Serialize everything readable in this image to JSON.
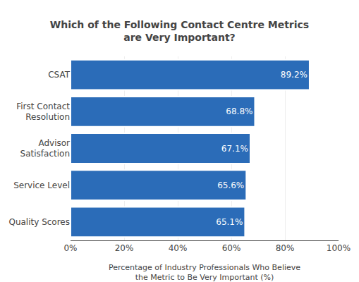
{
  "chart_data": {
    "type": "bar",
    "orientation": "horizontal",
    "title": "Which of the Following Contact Centre Metrics\nare Very Important?",
    "categories": [
      "Quality Scores",
      "Service Level",
      "Advisor\nSatisfaction",
      "First Contact\nResolution",
      "CSAT"
    ],
    "values": [
      65.1,
      65.6,
      67.1,
      68.8,
      89.2
    ],
    "value_labels": [
      "65.1%",
      "65.6%",
      "67.1%",
      "68.8%",
      "89.2%"
    ],
    "data_labels": true,
    "color": "#2B6CB8",
    "xlabel": "Percentage of Industry Professionals Who Believe\nthe Metric to Be Very Important (%)",
    "xlim": [
      0,
      100
    ],
    "xticks": [
      {
        "value": 0,
        "label": "0%"
      },
      {
        "value": 20,
        "label": "20%"
      },
      {
        "value": 40,
        "label": "40%"
      },
      {
        "value": 60,
        "label": "60%"
      },
      {
        "value": 80,
        "label": "80%"
      },
      {
        "value": 100,
        "label": "100%"
      }
    ],
    "grid": true
  }
}
